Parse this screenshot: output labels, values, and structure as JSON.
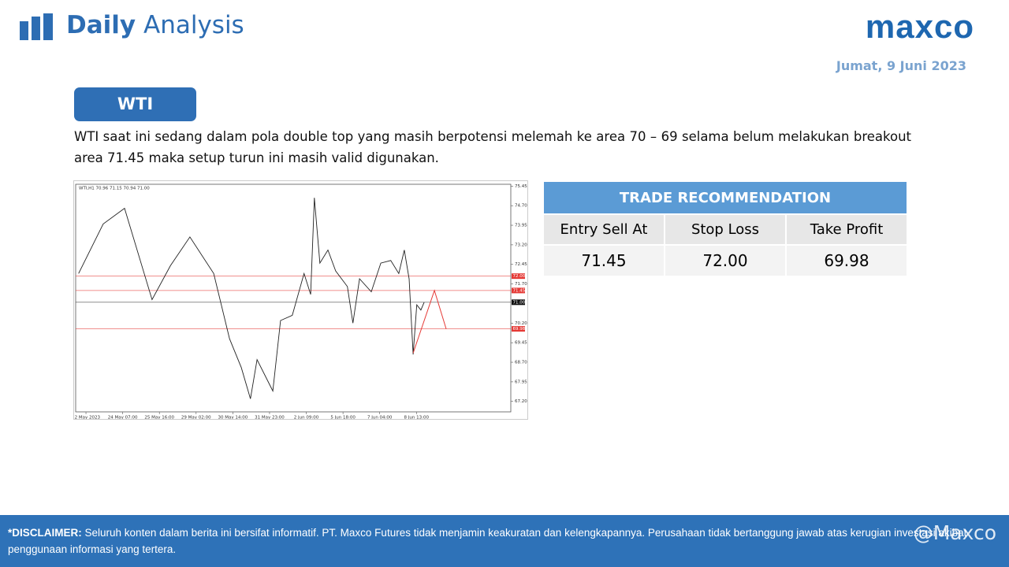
{
  "header": {
    "title_bold": "Daily",
    "title_rest": "Analysis",
    "logo": "maxco",
    "date": "Jumat, 9 Juni 2023"
  },
  "section": {
    "label": "WTI",
    "text": "WTI saat ini sedang dalam pola double top yang masih berpotensi melemah ke area 70 – 69 selama belum melakukan breakout area 71.45 maka setup turun ini masih valid digunakan."
  },
  "table": {
    "title": "TRADE RECOMMENDATION",
    "columns": [
      "Entry Sell At",
      "Stop Loss",
      "Take Profit"
    ],
    "rows": [
      [
        "71.45",
        "72.00",
        "69.98"
      ]
    ]
  },
  "chart_data": {
    "type": "line",
    "header": "WTI,H1  70.96 71.15 70.94 71.00",
    "x": [
      -0.2,
      0.47,
      1.05,
      1.8,
      2.3,
      2.83,
      3.48,
      3.91,
      4.23,
      4.48,
      4.66,
      5.09,
      5.3,
      5.62,
      5.94,
      6.12,
      6.22,
      6.37,
      6.59,
      6.8,
      7.12,
      7.27,
      7.45,
      7.77,
      8.03,
      8.3,
      8.52,
      8.67,
      8.8,
      8.91,
      9.01,
      9.12,
      9.21
    ],
    "series": [
      {
        "color": "#222222",
        "values": [
          72.1,
          74.0,
          74.6,
          71.1,
          72.4,
          73.5,
          72.1,
          69.6,
          68.5,
          67.3,
          68.8,
          67.6,
          70.3,
          70.5,
          72.1,
          71.3,
          75.0,
          72.5,
          73.0,
          72.2,
          71.6,
          70.2,
          71.9,
          71.4,
          72.5,
          72.6,
          72.1,
          73.0,
          71.9,
          69.0,
          70.9,
          70.7,
          71.0
        ]
      }
    ],
    "projection": {
      "color": "#e53935",
      "x": [
        8.91,
        9.49,
        9.81
      ],
      "values": [
        69.05,
        71.45,
        69.98
      ]
    },
    "levels": [
      {
        "value": 72.0,
        "label": "72.00",
        "color": "#e53935"
      },
      {
        "value": 71.45,
        "label": "71.45",
        "color": "#e53935"
      },
      {
        "value": 71.0,
        "label": "71.00",
        "color": "#111111"
      },
      {
        "value": 69.98,
        "label": "69.98",
        "color": "#e53935"
      }
    ],
    "xlim": [
      -0.28,
      11.57
    ],
    "ylim": [
      66.8,
      75.52
    ],
    "xticks": [
      {
        "value": 0,
        "label": "22 May 2023"
      },
      {
        "value": 1,
        "label": "24 May 07:00"
      },
      {
        "value": 2,
        "label": "25 May 16:00"
      },
      {
        "value": 3,
        "label": "29 May 02:00"
      },
      {
        "value": 4,
        "label": "30 May 14:00"
      },
      {
        "value": 5,
        "label": "31 May 23:00"
      },
      {
        "value": 6,
        "label": "2 Jun 09:00"
      },
      {
        "value": 7,
        "label": "5 Jun 18:00"
      },
      {
        "value": 8,
        "label": "7 Jun 04:00"
      },
      {
        "value": 9,
        "label": "8 Jun 13:00"
      }
    ],
    "yticks": [
      75.45,
      {
        "value": 74.7,
        "label": "74.70"
      },
      73.95,
      {
        "value": 73.2,
        "label": "73.20"
      },
      72.45,
      {
        "value": 71.7,
        "label": "71.70"
      },
      {
        "value": 70.2,
        "label": "70.20"
      },
      69.45,
      {
        "value": 68.7,
        "label": "68.70"
      },
      67.95,
      {
        "value": 67.2,
        "label": "67.20"
      }
    ]
  },
  "footer": {
    "disclaimer_label": "*DISCLAIMER:",
    "disclaimer": "Seluruh konten dalam berita ini bersifat informatif. PT. Maxco Futures tidak menjamin keakuratan dan kelengkapannya. Perusahaan tidak bertanggung jawab atas kerugian investasi akibat penggunaan informasi yang tertera.",
    "social": "@Maxco"
  }
}
